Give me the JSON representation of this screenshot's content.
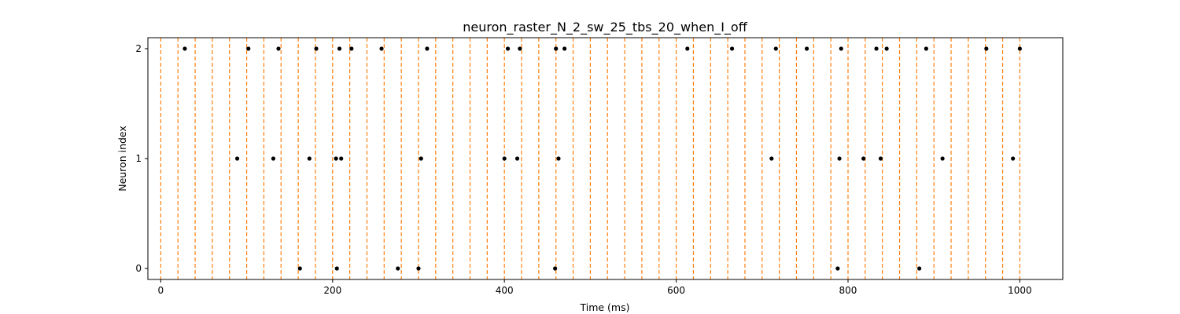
{
  "chart_data": {
    "type": "scatter",
    "title": "neuron_raster_N_2_sw_25_tbs_20_when_I_off",
    "xlabel": "Time (ms)",
    "ylabel": "Neuron index",
    "xlim": [
      -15,
      1050
    ],
    "ylim": [
      -0.1,
      2.1
    ],
    "xticks": [
      0,
      200,
      400,
      600,
      800,
      1000
    ],
    "xtick_labels": [
      "0",
      "200",
      "400",
      "600",
      "800",
      "1000"
    ],
    "yticks": [
      0,
      1,
      2
    ],
    "ytick_labels": [
      "0",
      "1",
      "2"
    ],
    "grid": false,
    "marker_color": "#000000",
    "vline_color": "#ff7f0e",
    "vlines_x": [
      0,
      20,
      40,
      60,
      80,
      100,
      120,
      140,
      160,
      180,
      200,
      220,
      240,
      260,
      280,
      300,
      320,
      340,
      360,
      380,
      400,
      420,
      440,
      460,
      480,
      500,
      520,
      540,
      560,
      580,
      600,
      620,
      640,
      660,
      680,
      700,
      720,
      740,
      760,
      780,
      800,
      820,
      840,
      860,
      880,
      900,
      920,
      940,
      960,
      980,
      1000
    ],
    "series": [
      {
        "neuron": 0,
        "x": [
          162,
          205,
          276,
          300,
          459,
          788,
          883
        ]
      },
      {
        "neuron": 1,
        "x": [
          89,
          131,
          173,
          204,
          210,
          303,
          400,
          415,
          463,
          711,
          790,
          818,
          838,
          910,
          992
        ]
      },
      {
        "neuron": 2,
        "x": [
          28,
          102,
          137,
          181,
          208,
          222,
          257,
          310,
          404,
          418,
          460,
          470,
          613,
          665,
          716,
          752,
          792,
          833,
          845,
          891,
          961,
          1000
        ]
      }
    ]
  }
}
